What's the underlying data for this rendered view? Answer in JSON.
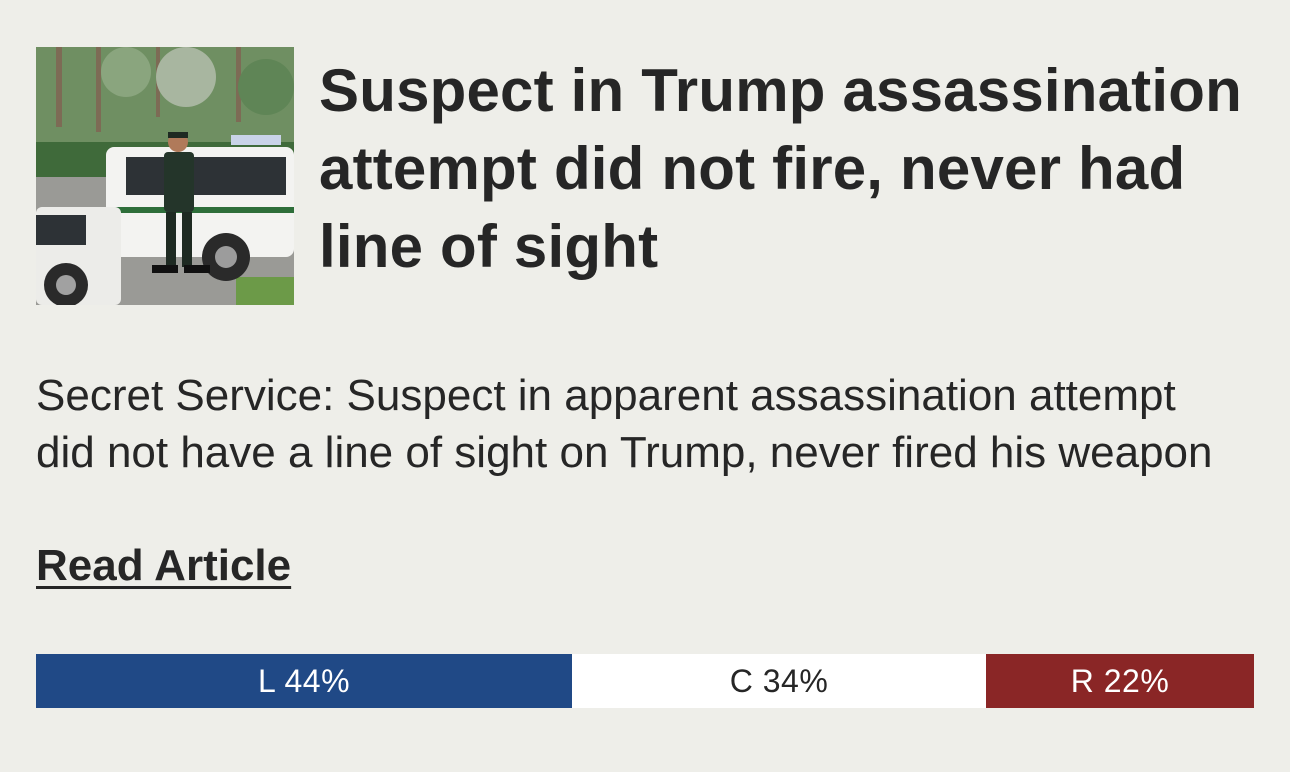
{
  "article": {
    "headline": "Suspect in Trump assassination attempt did not fire, never had line of sight",
    "summary": "Secret Service: Suspect in apparent assassination attempt did not have a line of sight on Trump, never fired his weapon",
    "read_link": "Read Article",
    "image_alt_icon": "news-photo"
  },
  "bias": {
    "left": {
      "label": "L 44%",
      "percent": 44,
      "color": "#204986"
    },
    "center": {
      "label": "C 34%",
      "percent": 34,
      "color": "#ffffff"
    },
    "right": {
      "label": "R 22%",
      "percent": 22,
      "color": "#8a2626"
    }
  }
}
